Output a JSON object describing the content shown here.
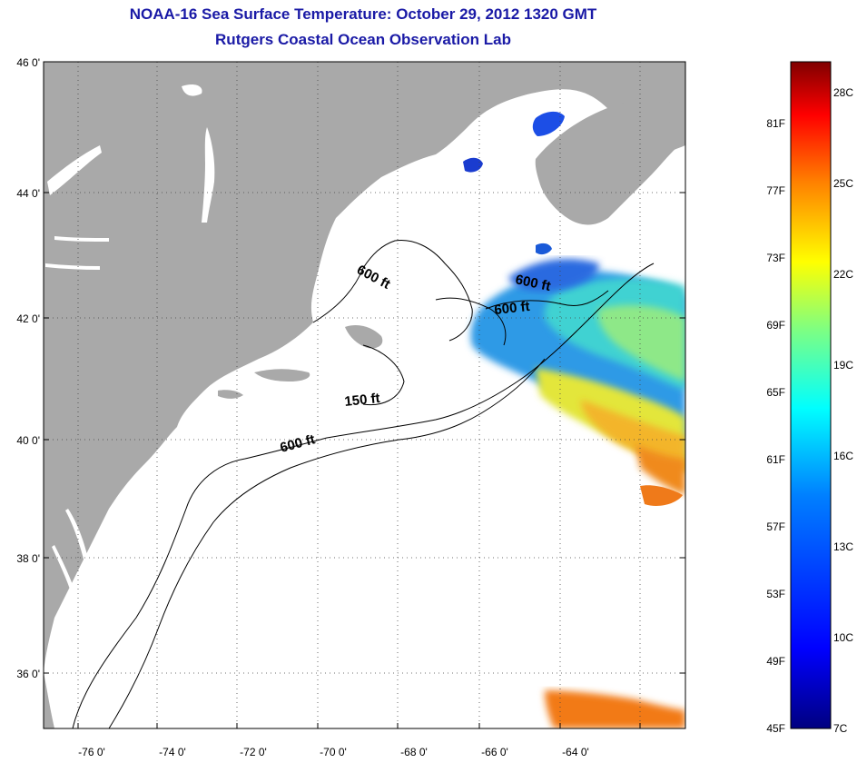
{
  "title": {
    "line1": "NOAA-16 Sea Surface Temperature:  October 29, 2012 1320 GMT",
    "line2": "Rutgers Coastal Ocean Observation Lab"
  },
  "map": {
    "lat_labels": [
      "46 0'",
      "44 0'",
      "42 0'",
      "40 0'",
      "38 0'",
      "36 0'"
    ],
    "lon_labels": [
      "-76 0'",
      "-74 0'",
      "-72 0'",
      "-70 0'",
      "-68 0'",
      "-66 0'",
      "-64 0'"
    ],
    "contour_labels": [
      "600 ft",
      "600 ft",
      "600 ft",
      "150 ft",
      "600 ft"
    ],
    "colors": {
      "land": "#a9a9a9",
      "ocean_no_data": "#ffffff",
      "grid": "#444444"
    }
  },
  "colorbar": {
    "fahrenheit_labels": [
      "81F",
      "77F",
      "73F",
      "69F",
      "65F",
      "61F",
      "57F",
      "53F",
      "49F",
      "45F"
    ],
    "celsius_labels": [
      "28C",
      "25C",
      "22C",
      "19C",
      "16C",
      "13C",
      "10C",
      "7C"
    ],
    "gradient_colors": [
      "#000080",
      "#0000ff",
      "#0080ff",
      "#00ffff",
      "#80ff80",
      "#ffff00",
      "#ff8000",
      "#ff0000",
      "#800000"
    ]
  }
}
